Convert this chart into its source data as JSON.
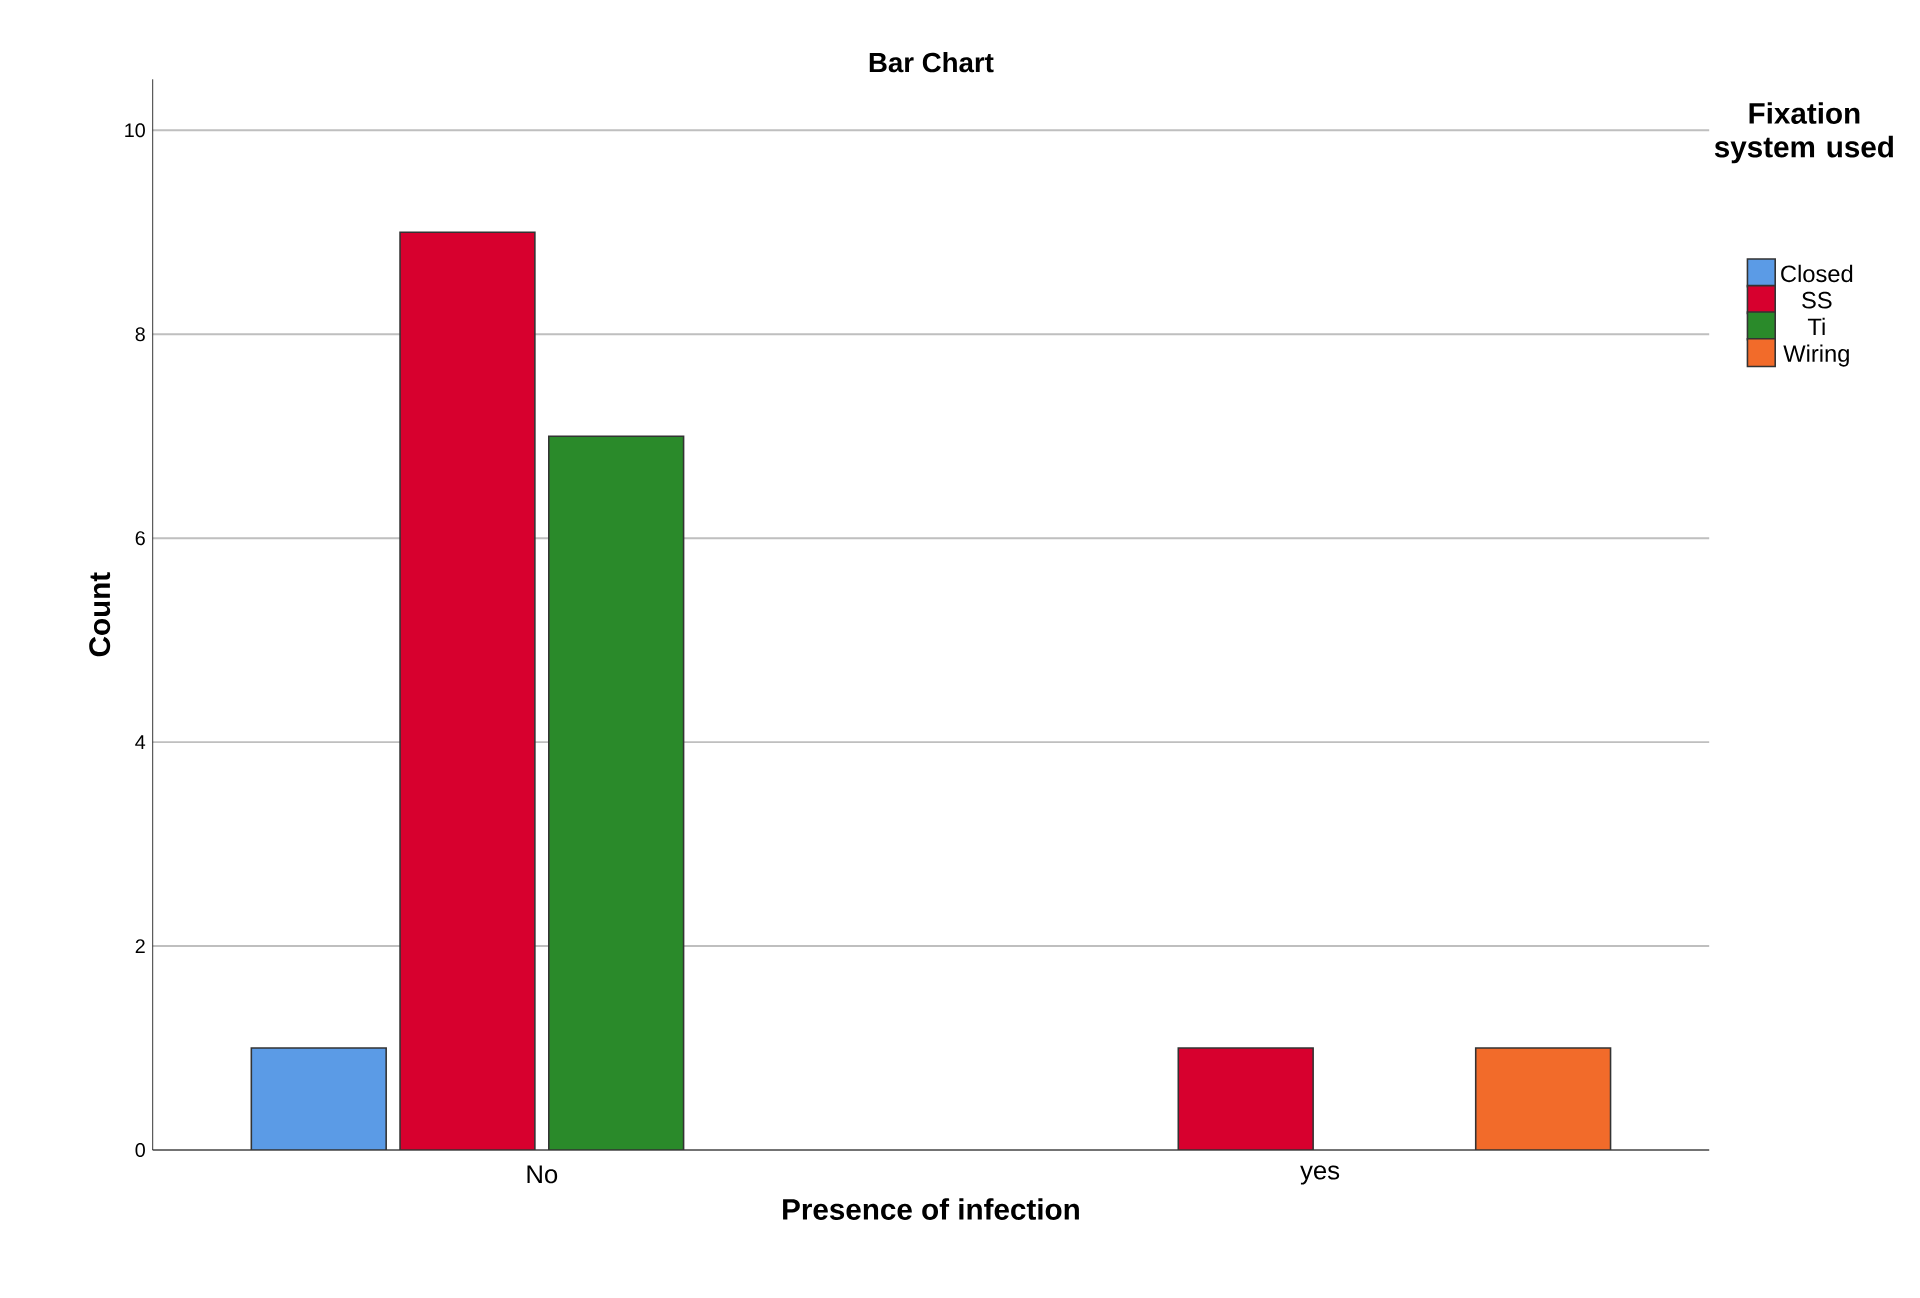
{
  "chart_data": {
    "type": "bar",
    "title": "Bar Chart",
    "xlabel": "Presence of infection",
    "ylabel": "Count",
    "legend_title": "Fixation system used",
    "categories": [
      "No",
      "yes"
    ],
    "series": [
      {
        "name": "Closed",
        "color": "#5b9be6",
        "values": [
          1,
          null
        ]
      },
      {
        "name": "SS",
        "color": "#d7002e",
        "values": [
          9,
          1
        ]
      },
      {
        "name": "Ti",
        "color": "#2a8a2a",
        "values": [
          7,
          null
        ]
      },
      {
        "name": "Wiring",
        "color": "#f26b2a",
        "values": [
          null,
          1
        ]
      }
    ],
    "ylim": [
      0,
      10.5
    ],
    "yticks": [
      0,
      2,
      4,
      6,
      8,
      10
    ],
    "grid": "y",
    "legend": "right"
  }
}
